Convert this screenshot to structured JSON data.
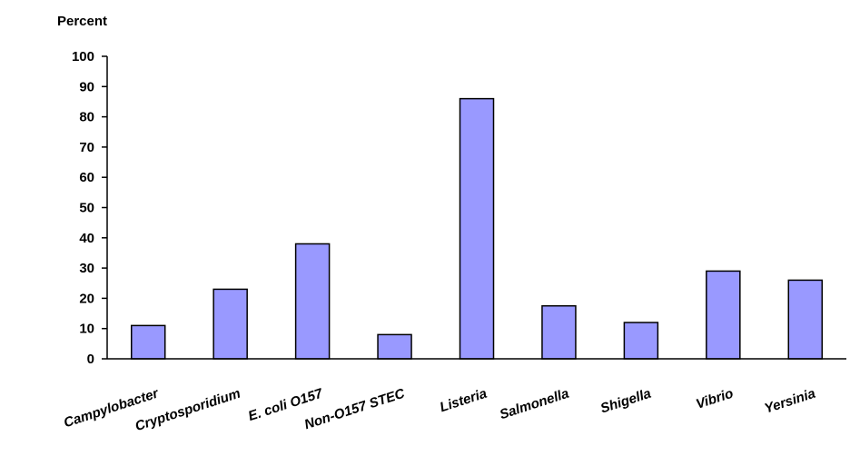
{
  "chart_data": {
    "type": "bar",
    "title": "",
    "xlabel": "",
    "ylabel": "Percent",
    "ylim": [
      0,
      100
    ],
    "yticks": [
      0,
      10,
      20,
      30,
      40,
      50,
      60,
      70,
      80,
      90,
      100
    ],
    "grid": false,
    "categories": [
      "Campylobacter",
      "Cryptosporidium",
      "E. coli O157",
      "Non-O157 STEC",
      "Listeria",
      "Salmonella",
      "Shigella",
      "Vibrio",
      "Yersinia"
    ],
    "values": [
      11,
      23,
      38,
      8,
      86,
      17.5,
      12,
      29,
      26
    ],
    "colors": {
      "bar_fill": "#9999ff",
      "bar_stroke": "#000000",
      "axis": "#000000"
    }
  }
}
